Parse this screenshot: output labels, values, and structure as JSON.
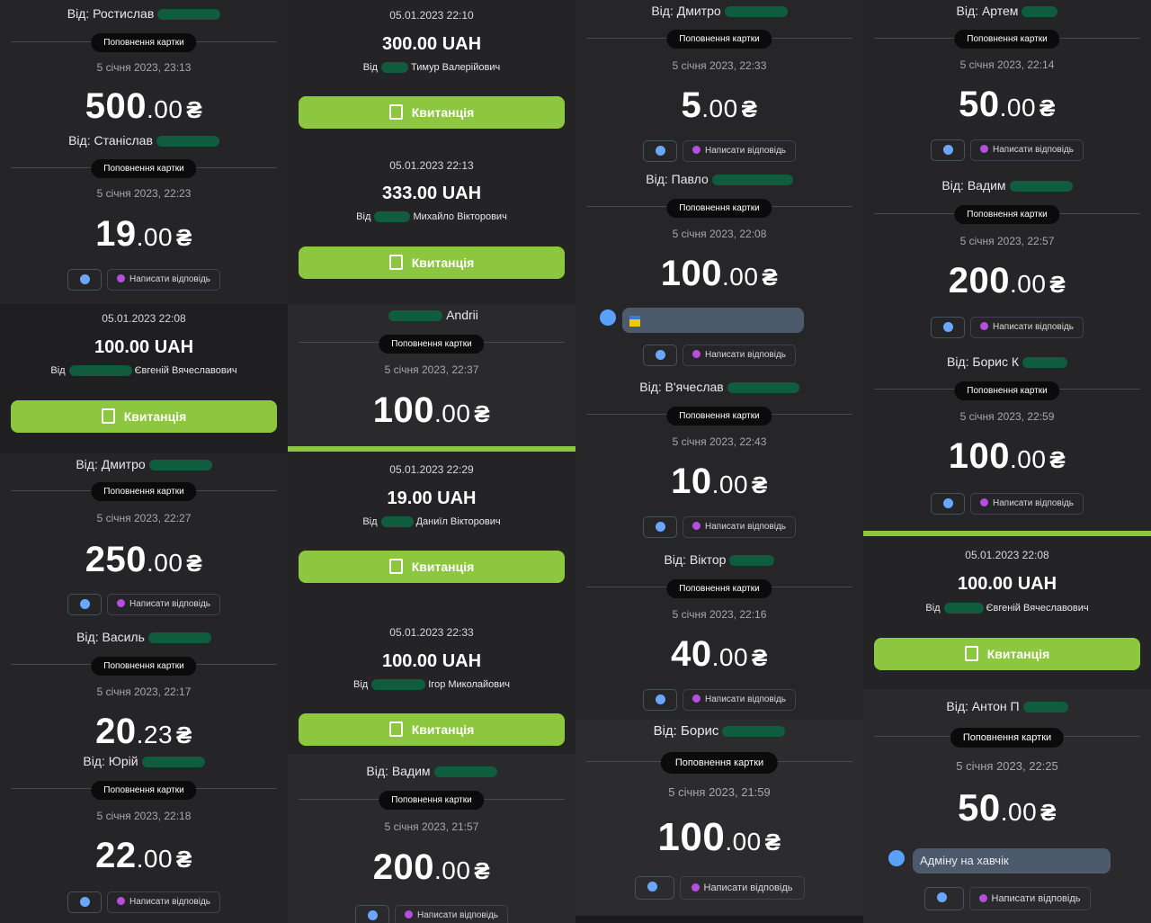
{
  "labels": {
    "card_topup": "Поповнення картки",
    "receipt": "Квитанція",
    "reply": "Написати відповідь",
    "currency_symbol": "₴"
  },
  "col1": [
    {
      "from": "Від: Ростислав",
      "date": "5 січня 2023, 23:13",
      "int": "500",
      "cents": ".00"
    },
    {
      "from": "Від: Станіслав",
      "date": "5 січня 2023, 22:23",
      "int": "19",
      "cents": ".00"
    },
    {
      "rdate": "05.01.2023 22:08",
      "ramt": "100.00 UAH",
      "rfrom_pre": "Від",
      "rfrom_post": "Євгеній Вячеславович"
    },
    {
      "from": "Від: Дмитро",
      "date": "5 січня 2023, 22:27",
      "int": "250",
      "cents": ".00"
    },
    {
      "from": "Від: Василь",
      "date": "5 січня 2023, 22:17",
      "int": "20",
      "cents": ".23"
    },
    {
      "from": "Від: Юрій",
      "date": "5 січня 2023, 22:18",
      "int": "22",
      "cents": ".00"
    }
  ],
  "col2": [
    {
      "rdate": "05.01.2023 22:10",
      "ramt": "300.00 UAH",
      "rfrom_pre": "Від",
      "rfrom_post": "Тимур Валерійович"
    },
    {
      "rdate": "05.01.2023 22:13",
      "ramt": "333.00 UAH",
      "rfrom_pre": "Від",
      "rfrom_post": "Михайло Вікторович"
    },
    {
      "from": "Andrii",
      "date": "5 січня 2023, 22:37",
      "int": "100",
      "cents": ".00"
    },
    {
      "rdate": "05.01.2023 22:29",
      "ramt": "19.00 UAH",
      "rfrom_pre": "Від",
      "rfrom_post": "Даниїл Вікторович"
    },
    {
      "rdate": "05.01.2023 22:33",
      "ramt": "100.00 UAH",
      "rfrom_pre": "Від",
      "rfrom_post": "Ігор Миколайович"
    },
    {
      "from": "Від: Вадим",
      "date": "5 січня 2023, 21:57",
      "int": "200",
      "cents": ".00"
    }
  ],
  "col3": [
    {
      "from": "Від: Дмитро",
      "date": "5 січня 2023, 22:33",
      "int": "5",
      "cents": ".00"
    },
    {
      "from": "Від: Павло",
      "date": "5 січня 2023, 22:08",
      "int": "100",
      "cents": ".00"
    },
    {
      "from": "Від: В'ячеслав",
      "date": "5 січня 2023, 22:43",
      "int": "10",
      "cents": ".00"
    },
    {
      "from": "Від: Віктор",
      "date": "5 січня 2023, 22:16",
      "int": "40",
      "cents": ".00"
    },
    {
      "from": "Від: Борис",
      "date": "5 січня 2023, 21:59",
      "int": "100",
      "cents": ".00"
    }
  ],
  "col4": [
    {
      "from": "Від: Артем",
      "date": "5 січня 2023, 22:14",
      "int": "50",
      "cents": ".00"
    },
    {
      "from": "Від: Вадим",
      "date": "5 січня 2023, 22:57",
      "int": "200",
      "cents": ".00"
    },
    {
      "from": "Від: Борис К",
      "date": "5 січня 2023, 22:59",
      "int": "100",
      "cents": ".00"
    },
    {
      "rdate": "05.01.2023 22:08",
      "ramt": "100.00 UAH",
      "rfrom_pre": "Від",
      "rfrom_post": "Євгеній Вячеславович"
    },
    {
      "from": "Від: Антон П",
      "date": "5 січня 2023, 22:25",
      "int": "50",
      "cents": ".00",
      "comment": "Адміну на хавчік"
    }
  ],
  "colors": {
    "green": "#8dc63f",
    "bg": "#252527",
    "pill": "#0b0b0c"
  },
  "icons": {
    "receipt": "document-icon",
    "emoji": "emoji-icon",
    "reply": "reply-icon",
    "comment": "comment-icon"
  }
}
